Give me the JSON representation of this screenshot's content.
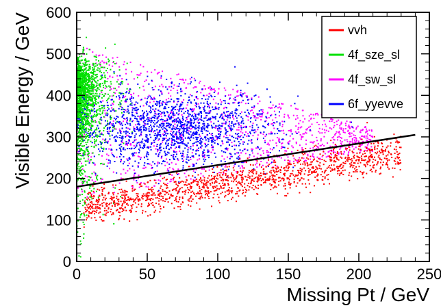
{
  "chart_data": {
    "type": "scatter",
    "title": "",
    "xlabel": "Missing Pt / GeV",
    "ylabel": "Visible Energy / GeV",
    "xlim": [
      0,
      250
    ],
    "ylim": [
      0,
      600
    ],
    "x_ticks": [
      "0",
      "50",
      "100",
      "150",
      "200",
      "250"
    ],
    "y_ticks": [
      "0",
      "100",
      "200",
      "300",
      "400",
      "500",
      "600"
    ],
    "grid": false,
    "legend_position": "top-right",
    "cut_line": {
      "x": [
        0,
        240
      ],
      "y": [
        180,
        305
      ],
      "color": "#000000"
    },
    "series": [
      {
        "name": "vvh",
        "color": "#ff0000",
        "points_per_cluster": 1400,
        "distribution": "band: x uniform 5–230, y ≈ 125 + 0.6·x ± 25"
      },
      {
        "name": "4f_sze_sl",
        "color": "#00e000",
        "points_per_cluster": 1600,
        "distribution": "x concentrated 0–30 (exponential), y 100–560, peak near 460"
      },
      {
        "name": "4f_sw_sl",
        "color": "#ff00ff",
        "points_per_cluster": 1200,
        "distribution": "wedge: x 0–210, y between 150+0.55·x and 520−0.95·x"
      },
      {
        "name": "6f_yyevve",
        "color": "#0000ff",
        "points_per_cluster": 1500,
        "distribution": "broad cluster: x 10–170 centred ~70, y 210–450 centred ~320"
      }
    ]
  }
}
